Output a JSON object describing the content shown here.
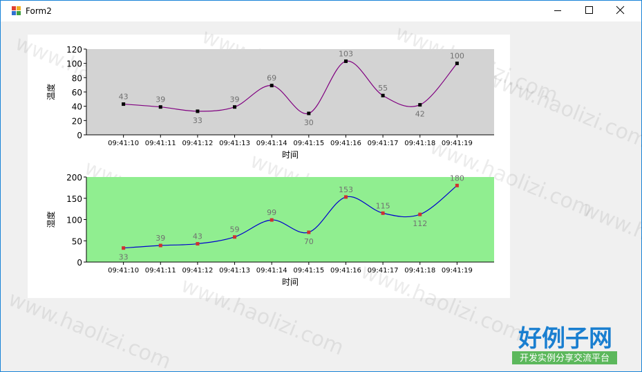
{
  "window": {
    "title": "Form2"
  },
  "watermark": "www.haolizi.com",
  "logo": {
    "title": "好例子网",
    "subtitle": "开发实例分享交流平台"
  },
  "chart_data": [
    {
      "type": "line",
      "ylabel": "温度",
      "xlabel": "时间",
      "categories": [
        "09:41:10",
        "09:41:11",
        "09:41:12",
        "09:41:13",
        "09:41:14",
        "09:41:15",
        "09:41:16",
        "09:41:17",
        "09:41:18",
        "09:41:19"
      ],
      "series": [
        {
          "color": "#800080",
          "marker_color": "#000000",
          "values": [
            43,
            39,
            33,
            39,
            69,
            30,
            103,
            55,
            42,
            100
          ]
        }
      ],
      "background": "#d3d3d3",
      "ylim": [
        0,
        120
      ],
      "yticks": [
        0,
        20,
        40,
        60,
        80,
        100,
        120
      ]
    },
    {
      "type": "line",
      "ylabel": "湿度",
      "xlabel": "时间",
      "categories": [
        "09:41:10",
        "09:41:11",
        "09:41:12",
        "09:41:13",
        "09:41:14",
        "09:41:15",
        "09:41:16",
        "09:41:17",
        "09:41:18",
        "09:41:19"
      ],
      "series": [
        {
          "color": "#0000cd",
          "marker_color": "#d03030",
          "values": [
            33,
            39,
            43,
            59,
            99,
            70,
            153,
            115,
            112,
            180
          ]
        }
      ],
      "background": "#90ee90",
      "ylim": [
        0,
        200
      ],
      "yticks": [
        0,
        50,
        100,
        150,
        200
      ]
    }
  ]
}
